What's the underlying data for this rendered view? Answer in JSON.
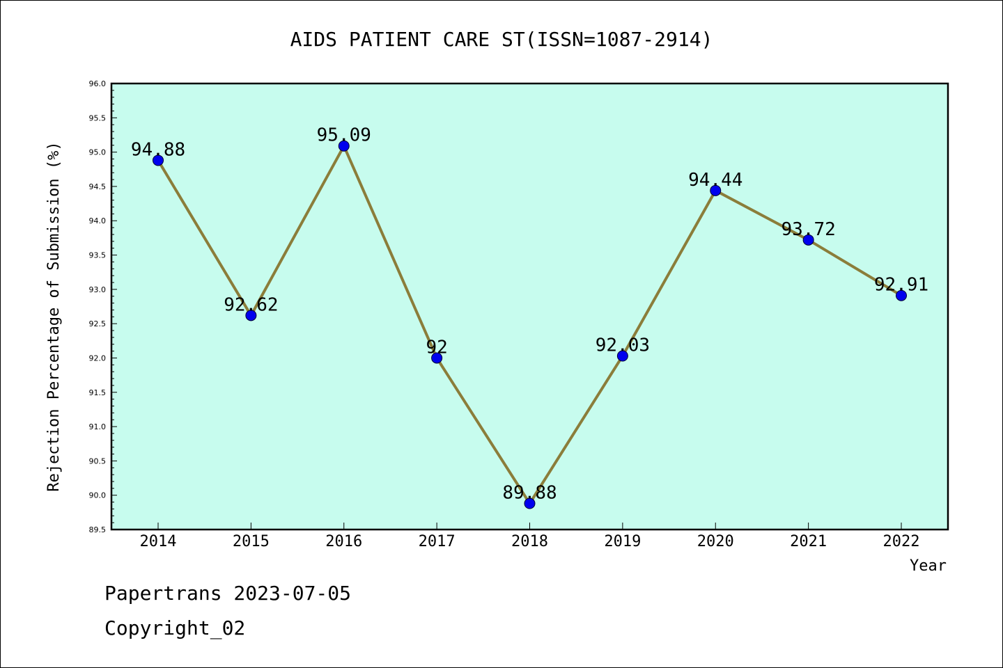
{
  "chart_data": {
    "type": "line",
    "title": "AIDS PATIENT CARE ST(ISSN=1087-2914)",
    "xlabel": "Year",
    "ylabel": "Rejection Percentage of Submission (%)",
    "ylim": [
      89.5,
      96.0
    ],
    "yticks": [
      "89.5",
      "90.0",
      "90.5",
      "91.0",
      "91.5",
      "92.0",
      "92.5",
      "93.0",
      "93.5",
      "94.0",
      "94.5",
      "95.0",
      "95.5",
      "96.0"
    ],
    "categories": [
      "2014",
      "2015",
      "2016",
      "2017",
      "2018",
      "2019",
      "2020",
      "2021",
      "2022"
    ],
    "series": [
      {
        "values": [
          94.88,
          92.62,
          95.09,
          92,
          89.88,
          92.03,
          94.44,
          93.72,
          92.91
        ],
        "labels": [
          "94.88",
          "92.62",
          "95.09",
          "92",
          "89.88",
          "92.03",
          "94.44",
          "93.72",
          "92.91"
        ]
      }
    ],
    "grid": false,
    "colors": {
      "background": "#c7fcee",
      "line": "#8b7d3a",
      "marker": "#0000ee"
    }
  },
  "footer": {
    "line1": "Papertrans 2023-07-05",
    "line2": "Copyright_02"
  }
}
